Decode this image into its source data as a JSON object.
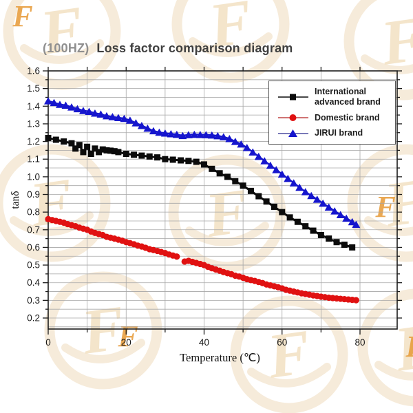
{
  "watermark": {
    "glyph": "F",
    "ring_color": "#f0dbbc",
    "glyph_color": "#ecd0a2",
    "accent_color": "#e79a36"
  },
  "chart_data": {
    "type": "line-scatter",
    "title_prefix": "(100HZ)",
    "title": "Loss factor comparison diagram",
    "xlabel": "Temperature (℃)",
    "ylabel": "tanδ",
    "xlim": [
      0,
      89.5
    ],
    "ylim": [
      0.137,
      1.6
    ],
    "x_major_ticks": [
      0,
      20,
      40,
      60,
      80
    ],
    "x_minor_ticks": [
      10,
      30,
      50,
      70
    ],
    "x_gridlines": [
      10,
      20,
      30,
      40,
      50,
      60,
      70,
      80
    ],
    "y_tick_min": 0.2,
    "y_tick_max": 1.6,
    "y_tick_step": 0.1,
    "y_minor_step": 0.05,
    "y_grid_min": 0.15,
    "y_grid_max": 1.55,
    "y_grid_step": 0.05,
    "grid_on": true,
    "grid_color": "#a6a6a6",
    "frame_color": "#1c1c1c",
    "legend_position": "top-right",
    "series": [
      {
        "id": "international",
        "name": "International advanced brand",
        "color": "#0b0b0b",
        "marker": "square",
        "points": [
          [
            0,
            1.22
          ],
          [
            2,
            1.21
          ],
          [
            4,
            1.2
          ],
          [
            6,
            1.19
          ],
          [
            7,
            1.16
          ],
          [
            8,
            1.18
          ],
          [
            9,
            1.14
          ],
          [
            10,
            1.17
          ],
          [
            11,
            1.13
          ],
          [
            12,
            1.16
          ],
          [
            13,
            1.14
          ],
          [
            14,
            1.155
          ],
          [
            15,
            1.15
          ],
          [
            16,
            1.148
          ],
          [
            17,
            1.145
          ],
          [
            18,
            1.14
          ],
          [
            20,
            1.13
          ],
          [
            22,
            1.125
          ],
          [
            24,
            1.12
          ],
          [
            26,
            1.115
          ],
          [
            28,
            1.11
          ],
          [
            30,
            1.1
          ],
          [
            32,
            1.097
          ],
          [
            34,
            1.093
          ],
          [
            36,
            1.09
          ],
          [
            38,
            1.085
          ],
          [
            40,
            1.07
          ],
          [
            42,
            1.045
          ],
          [
            44,
            1.02
          ],
          [
            46,
            1.0
          ],
          [
            48,
            0.975
          ],
          [
            50,
            0.95
          ],
          [
            52,
            0.92
          ],
          [
            54,
            0.89
          ],
          [
            56,
            0.86
          ],
          [
            58,
            0.83
          ],
          [
            60,
            0.8
          ],
          [
            62,
            0.77
          ],
          [
            64,
            0.745
          ],
          [
            66,
            0.72
          ],
          [
            68,
            0.695
          ],
          [
            70,
            0.67
          ],
          [
            72,
            0.65
          ],
          [
            74,
            0.63
          ],
          [
            76,
            0.615
          ],
          [
            78,
            0.6
          ]
        ]
      },
      {
        "id": "domestic",
        "name": "Domestic brand",
        "color": "#e01111",
        "marker": "circle",
        "points": [
          [
            0,
            0.76
          ],
          [
            1,
            0.755
          ],
          [
            2,
            0.75
          ],
          [
            3,
            0.745
          ],
          [
            4,
            0.74
          ],
          [
            5,
            0.732
          ],
          [
            6,
            0.726
          ],
          [
            7,
            0.72
          ],
          [
            8,
            0.712
          ],
          [
            9,
            0.706
          ],
          [
            10,
            0.7
          ],
          [
            11,
            0.69
          ],
          [
            12,
            0.682
          ],
          [
            13,
            0.676
          ],
          [
            14,
            0.67
          ],
          [
            15,
            0.66
          ],
          [
            16,
            0.655
          ],
          [
            17,
            0.65
          ],
          [
            18,
            0.644
          ],
          [
            19,
            0.638
          ],
          [
            20,
            0.63
          ],
          [
            21,
            0.624
          ],
          [
            22,
            0.618
          ],
          [
            23,
            0.61
          ],
          [
            24,
            0.605
          ],
          [
            25,
            0.598
          ],
          [
            26,
            0.59
          ],
          [
            27,
            0.585
          ],
          [
            28,
            0.58
          ],
          [
            29,
            0.574
          ],
          [
            30,
            0.568
          ],
          [
            31,
            0.56
          ],
          [
            32,
            0.554
          ],
          [
            33,
            0.548
          ],
          [
            35,
            0.52
          ],
          [
            36,
            0.524
          ],
          [
            37,
            0.518
          ],
          [
            38,
            0.512
          ],
          [
            39,
            0.506
          ],
          [
            40,
            0.5
          ],
          [
            41,
            0.49
          ],
          [
            42,
            0.482
          ],
          [
            43,
            0.475
          ],
          [
            44,
            0.468
          ],
          [
            45,
            0.46
          ],
          [
            46,
            0.454
          ],
          [
            47,
            0.448
          ],
          [
            48,
            0.44
          ],
          [
            49,
            0.435
          ],
          [
            50,
            0.428
          ],
          [
            51,
            0.42
          ],
          [
            52,
            0.415
          ],
          [
            53,
            0.41
          ],
          [
            54,
            0.404
          ],
          [
            55,
            0.398
          ],
          [
            56,
            0.39
          ],
          [
            57,
            0.385
          ],
          [
            58,
            0.38
          ],
          [
            59,
            0.374
          ],
          [
            60,
            0.368
          ],
          [
            61,
            0.36
          ],
          [
            62,
            0.355
          ],
          [
            63,
            0.35
          ],
          [
            64,
            0.345
          ],
          [
            65,
            0.34
          ],
          [
            66,
            0.336
          ],
          [
            67,
            0.332
          ],
          [
            68,
            0.328
          ],
          [
            69,
            0.325
          ],
          [
            70,
            0.321
          ],
          [
            71,
            0.318
          ],
          [
            72,
            0.315
          ],
          [
            73,
            0.313
          ],
          [
            74,
            0.311
          ],
          [
            75,
            0.309
          ],
          [
            76,
            0.307
          ],
          [
            77,
            0.305
          ],
          [
            78,
            0.303
          ],
          [
            79,
            0.301
          ]
        ]
      },
      {
        "id": "jirui",
        "name": "JIRUI brand",
        "color": "#1515cd",
        "marker": "triangle-up",
        "points": [
          [
            0,
            1.43
          ],
          [
            1.5,
            1.42
          ],
          [
            3,
            1.41
          ],
          [
            4.5,
            1.405
          ],
          [
            6,
            1.395
          ],
          [
            7.5,
            1.385
          ],
          [
            9,
            1.375
          ],
          [
            10.5,
            1.37
          ],
          [
            12,
            1.36
          ],
          [
            13.5,
            1.355
          ],
          [
            15,
            1.345
          ],
          [
            16.5,
            1.34
          ],
          [
            18,
            1.335
          ],
          [
            19.5,
            1.33
          ],
          [
            21,
            1.32
          ],
          [
            22.5,
            1.305
          ],
          [
            24,
            1.29
          ],
          [
            25.5,
            1.275
          ],
          [
            27,
            1.26
          ],
          [
            28.5,
            1.252
          ],
          [
            30,
            1.247
          ],
          [
            31.5,
            1.243
          ],
          [
            33,
            1.24
          ],
          [
            34.5,
            1.233
          ],
          [
            36,
            1.238
          ],
          [
            37.5,
            1.24
          ],
          [
            39,
            1.239
          ],
          [
            40.5,
            1.238
          ],
          [
            42,
            1.236
          ],
          [
            43.5,
            1.232
          ],
          [
            45,
            1.226
          ],
          [
            46.5,
            1.216
          ],
          [
            48,
            1.2
          ],
          [
            49.5,
            1.185
          ],
          [
            51,
            1.165
          ],
          [
            52.5,
            1.14
          ],
          [
            54,
            1.115
          ],
          [
            55.5,
            1.09
          ],
          [
            57,
            1.065
          ],
          [
            58.5,
            1.04
          ],
          [
            60,
            1.015
          ],
          [
            61.5,
            0.99
          ],
          [
            63,
            0.965
          ],
          [
            64.5,
            0.94
          ],
          [
            66,
            0.915
          ],
          [
            67.5,
            0.893
          ],
          [
            69,
            0.872
          ],
          [
            70.5,
            0.85
          ],
          [
            72,
            0.828
          ],
          [
            73.5,
            0.806
          ],
          [
            75,
            0.785
          ],
          [
            76.5,
            0.765
          ],
          [
            78,
            0.745
          ],
          [
            79,
            0.73
          ]
        ]
      }
    ]
  }
}
